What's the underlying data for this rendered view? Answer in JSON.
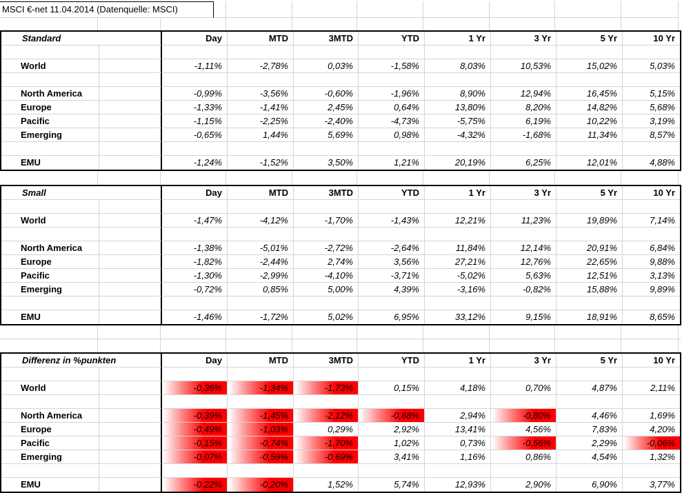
{
  "title": "MSCI €-net 11.04.2014 (Datenquelle: MSCI)",
  "columns": [
    "Day",
    "MTD",
    "3MTD",
    "YTD",
    "1 Yr",
    "3 Yr",
    "5 Yr",
    "10 Yr"
  ],
  "tables": [
    {
      "section": "Standard",
      "highlight_negative": false,
      "rows": [
        {
          "label": "World",
          "values": [
            "-1,11%",
            "-2,78%",
            "0,03%",
            "-1,58%",
            "8,03%",
            "10,53%",
            "15,02%",
            "5,03%"
          ]
        },
        {
          "label": "North America",
          "values": [
            "-0,99%",
            "-3,56%",
            "-0,60%",
            "-1,96%",
            "8,90%",
            "12,94%",
            "16,45%",
            "5,15%"
          ]
        },
        {
          "label": "Europe",
          "values": [
            "-1,33%",
            "-1,41%",
            "2,45%",
            "0,64%",
            "13,80%",
            "8,20%",
            "14,82%",
            "5,68%"
          ]
        },
        {
          "label": "Pacific",
          "values": [
            "-1,15%",
            "-2,25%",
            "-2,40%",
            "-4,73%",
            "-5,75%",
            "6,19%",
            "10,22%",
            "3,19%"
          ]
        },
        {
          "label": "Emerging",
          "values": [
            "-0,65%",
            "1,44%",
            "5,69%",
            "0,98%",
            "-4,32%",
            "-1,68%",
            "11,34%",
            "8,57%"
          ]
        },
        {
          "label": "EMU",
          "values": [
            "-1,24%",
            "-1,52%",
            "3,50%",
            "1,21%",
            "20,19%",
            "6,25%",
            "12,01%",
            "4,88%"
          ]
        }
      ]
    },
    {
      "section": "Small",
      "highlight_negative": false,
      "rows": [
        {
          "label": "World",
          "values": [
            "-1,47%",
            "-4,12%",
            "-1,70%",
            "-1,43%",
            "12,21%",
            "11,23%",
            "19,89%",
            "7,14%"
          ]
        },
        {
          "label": "North America",
          "values": [
            "-1,38%",
            "-5,01%",
            "-2,72%",
            "-2,64%",
            "11,84%",
            "12,14%",
            "20,91%",
            "6,84%"
          ]
        },
        {
          "label": "Europe",
          "values": [
            "-1,82%",
            "-2,44%",
            "2,74%",
            "3,56%",
            "27,21%",
            "12,76%",
            "22,65%",
            "9,88%"
          ]
        },
        {
          "label": "Pacific",
          "values": [
            "-1,30%",
            "-2,99%",
            "-4,10%",
            "-3,71%",
            "-5,02%",
            "5,63%",
            "12,51%",
            "3,13%"
          ]
        },
        {
          "label": "Emerging",
          "values": [
            "-0,72%",
            "0,85%",
            "5,00%",
            "4,39%",
            "-3,16%",
            "-0,82%",
            "15,88%",
            "9,89%"
          ]
        },
        {
          "label": "EMU",
          "values": [
            "-1,46%",
            "-1,72%",
            "5,02%",
            "6,95%",
            "33,12%",
            "9,15%",
            "18,91%",
            "8,65%"
          ]
        }
      ]
    },
    {
      "section": "Differenz in %punkten",
      "highlight_negative": true,
      "rows": [
        {
          "label": "World",
          "values": [
            "-0,36%",
            "-1,34%",
            "-1,73%",
            "0,15%",
            "4,18%",
            "0,70%",
            "4,87%",
            "2,11%"
          ]
        },
        {
          "label": "North America",
          "values": [
            "-0,39%",
            "-1,45%",
            "-2,12%",
            "-0,68%",
            "2,94%",
            "-0,80%",
            "4,46%",
            "1,69%"
          ]
        },
        {
          "label": "Europe",
          "values": [
            "-0,49%",
            "-1,03%",
            "0,29%",
            "2,92%",
            "13,41%",
            "4,56%",
            "7,83%",
            "4,20%"
          ]
        },
        {
          "label": "Pacific",
          "values": [
            "-0,15%",
            "-0,74%",
            "-1,70%",
            "1,02%",
            "0,73%",
            "-0,56%",
            "2,29%",
            "-0,06%"
          ]
        },
        {
          "label": "Emerging",
          "values": [
            "-0,07%",
            "-0,59%",
            "-0,69%",
            "3,41%",
            "1,16%",
            "0,86%",
            "4,54%",
            "1,32%"
          ]
        },
        {
          "label": "EMU",
          "values": [
            "-0,22%",
            "-0,20%",
            "1,52%",
            "5,74%",
            "12,93%",
            "2,90%",
            "6,90%",
            "3,77%"
          ]
        }
      ]
    }
  ],
  "colors": {
    "highlight_red": "#ff0000",
    "gridline": "#d4d4d4",
    "table_border": "#000000"
  }
}
